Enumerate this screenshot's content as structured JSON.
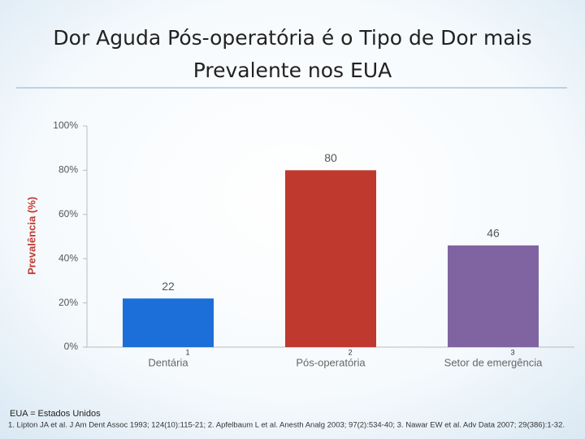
{
  "chart_data": {
    "type": "bar",
    "title": [
      "Dor Aguda Pós-operatória é o Tipo de Dor mais",
      "Prevalente nos EUA"
    ],
    "y_label": "Prevalência (%)",
    "categories": [
      "Dentária",
      "Pós-operatória",
      "Setor de emergência"
    ],
    "category_refs": [
      "1",
      "2",
      "3"
    ],
    "values": [
      22,
      80,
      46
    ],
    "colors": [
      "#1c6fd8",
      "#c0392f",
      "#8064a2"
    ],
    "ylim": [
      0,
      100
    ],
    "yticks": [
      {
        "value": 0,
        "label": "0%"
      },
      {
        "value": 20,
        "label": "20%"
      },
      {
        "value": 40,
        "label": "40%"
      },
      {
        "value": 60,
        "label": "60%"
      },
      {
        "value": 80,
        "label": "80%"
      },
      {
        "value": 100,
        "label": "100%"
      }
    ],
    "grid": false
  },
  "footnotes": {
    "abbreviation": "EUA = Estados Unidos",
    "references": "1. Lipton JA et al. J Am Dent Assoc 1993; 124(10):115-21; 2. Apfelbaum L et al. Anesth Analg 2003; 97(2):534-40; 3. Nawar EW et al. Adv Data 2007; 29(386):1-32."
  }
}
